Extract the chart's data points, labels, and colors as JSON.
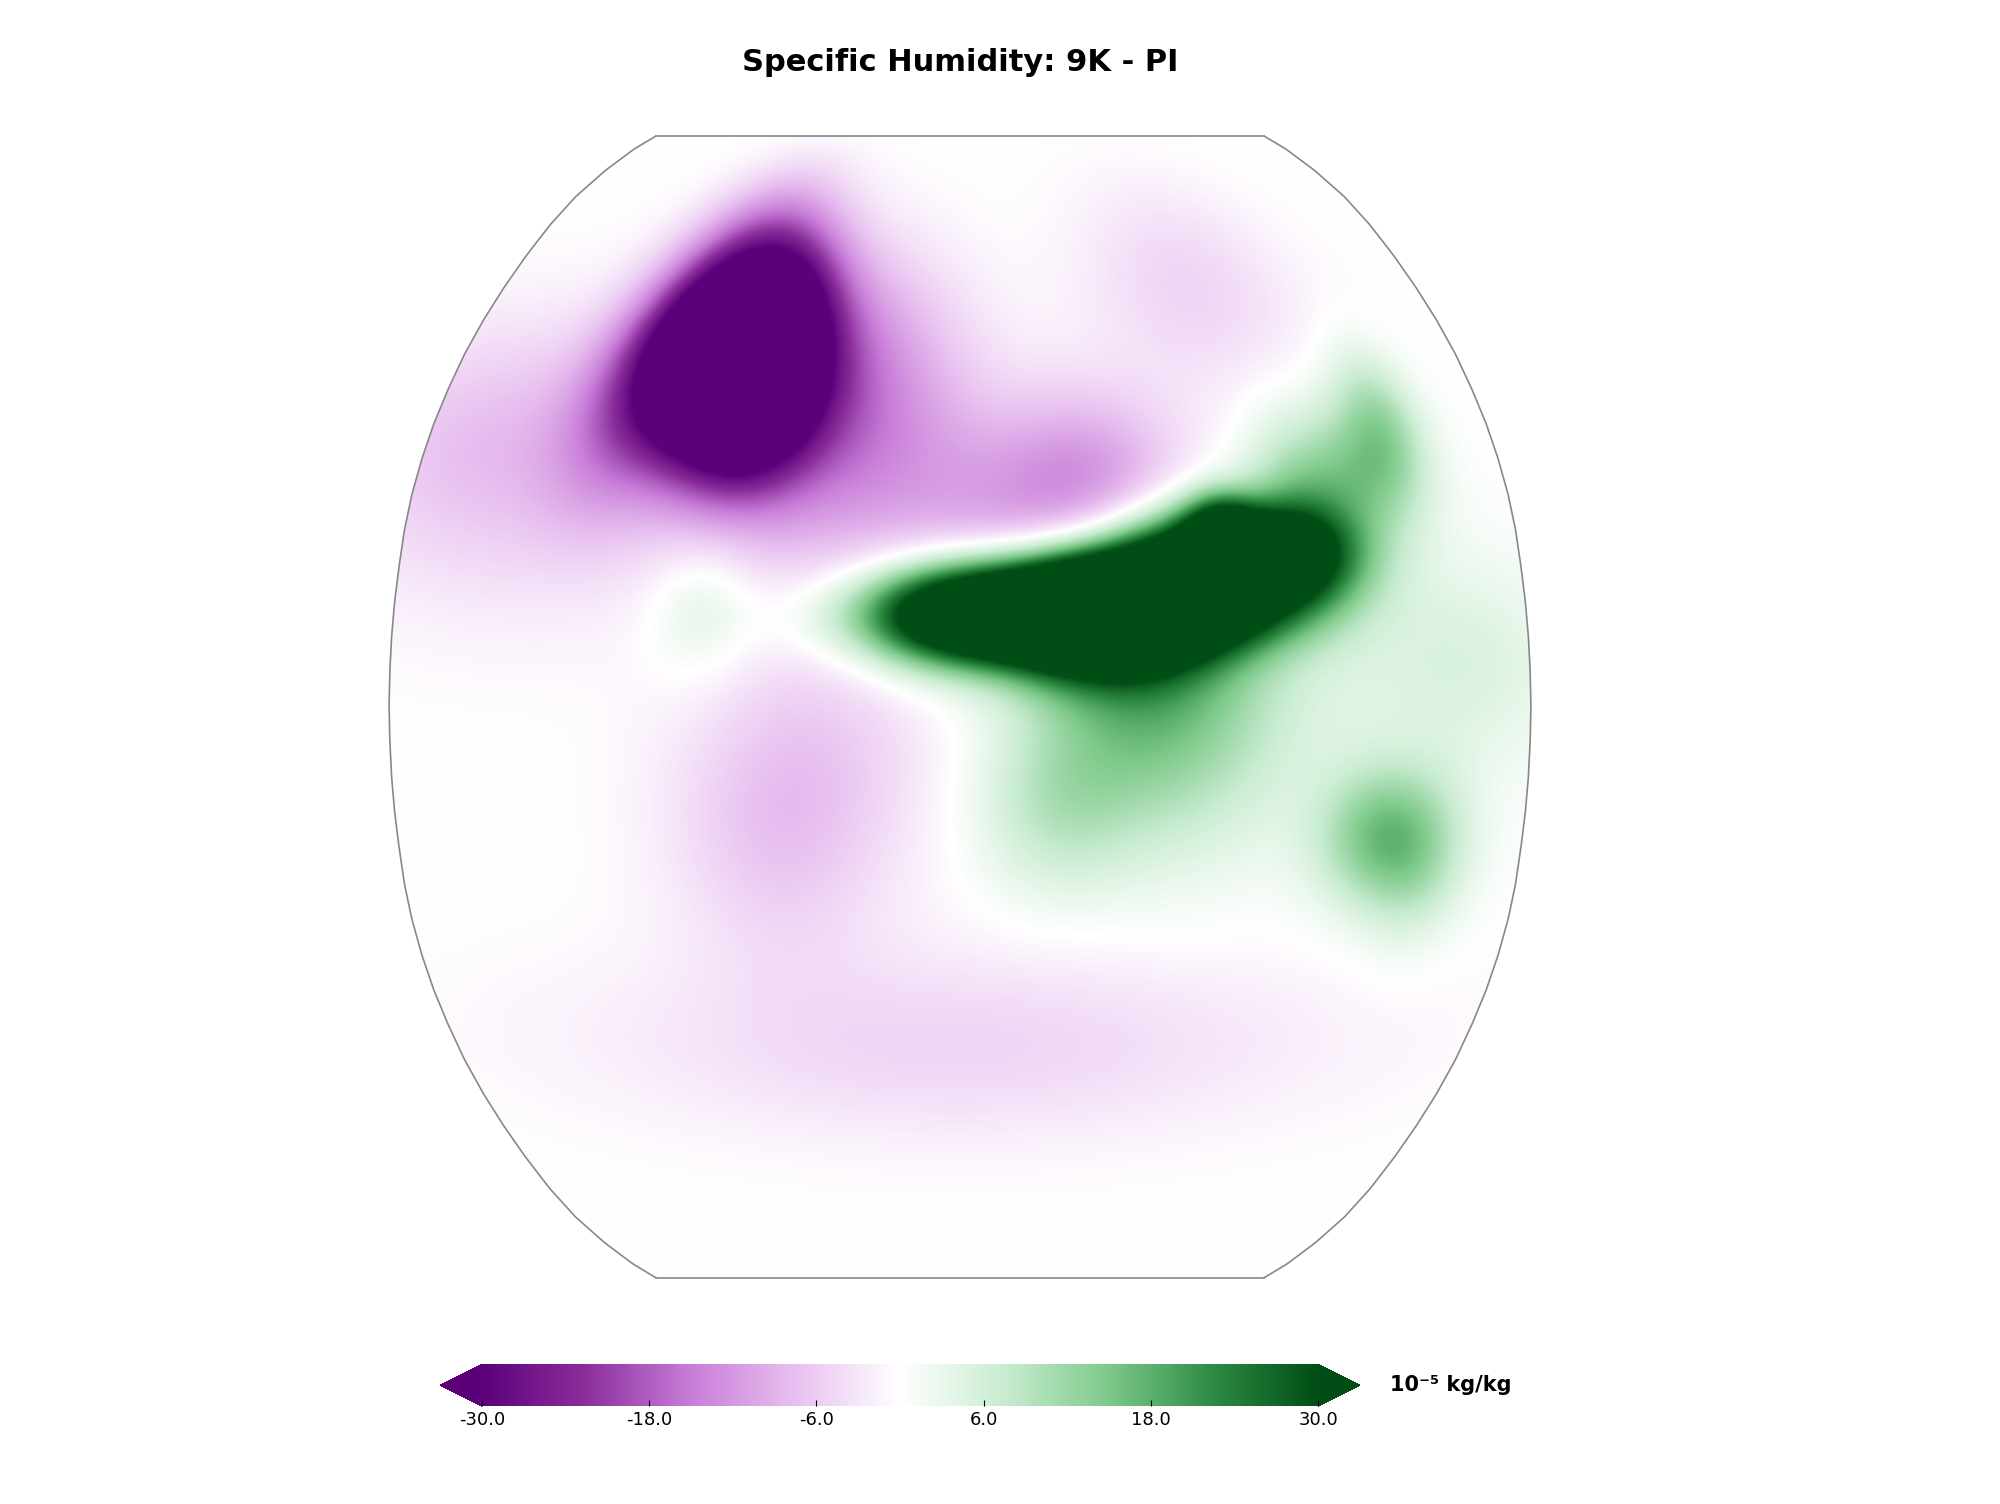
{
  "title": "Specific Humidity: 9K - PI",
  "colorbar_label": "10⁻⁵ kg/kg",
  "colorbar_ticks": [
    -30.0,
    -18.0,
    -6.0,
    6.0,
    18.0,
    30.0
  ],
  "vmin": -30,
  "vmax": 30,
  "background_color": "white",
  "title_fontsize": 22,
  "title_fontweight": "bold",
  "cmap_colors": [
    "#5c007a",
    "#8b2f9c",
    "#c87dd8",
    "#e8c0f0",
    "#ffffff",
    "#c8ecd0",
    "#7dc98a",
    "#2d8a42",
    "#004d15"
  ],
  "colorbar_extend_color_left": "#5c007a",
  "colorbar_extend_color_right": "#004d15",
  "river_color": "#dd00bb",
  "coast_color": "#333333",
  "border_color": "#555555",
  "map_outline_color": "#888888"
}
